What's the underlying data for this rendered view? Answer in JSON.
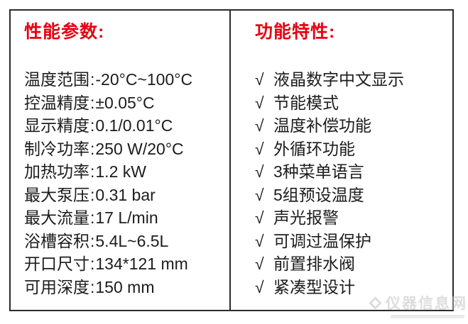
{
  "left_panel": {
    "title": "性能参数:",
    "separator": ":",
    "specs": [
      {
        "label": "温度范围",
        "value": "-20°C~100°C"
      },
      {
        "label": "控温精度",
        "value": "±0.05°C"
      },
      {
        "label": "显示精度",
        "value": "0.1/0.01°C"
      },
      {
        "label": "制冷功率",
        "value": "250 W/20°C"
      },
      {
        "label": "加热功率",
        "value": "1.2 kW"
      },
      {
        "label": "最大泵压",
        "value": "0.31 bar"
      },
      {
        "label": "最大流量",
        "value": "17 L/min"
      },
      {
        "label": "浴槽容积",
        "value": "5.4L~6.5L"
      },
      {
        "label": "开口尺寸",
        "value": "134*121 mm"
      },
      {
        "label": "可用深度",
        "value": "150 mm"
      }
    ]
  },
  "right_panel": {
    "title": "功能特性:",
    "check_symbol": "√",
    "features": [
      "液晶数字中文显示",
      "节能模式",
      "温度补偿功能",
      "外循环功能",
      "3种菜单语言",
      "5组预设温度",
      "声光报警",
      "可调过温保护",
      "前置排水阀",
      "紧凑型设计"
    ]
  },
  "watermark": {
    "text": "仪器信息网",
    "icon": "diamond-logo-icon"
  },
  "colors": {
    "title_red": "#e60012",
    "text_black": "#1c1c1c",
    "border_dark": "#2b2b2b",
    "watermark_gray": "#c2c2c2"
  }
}
